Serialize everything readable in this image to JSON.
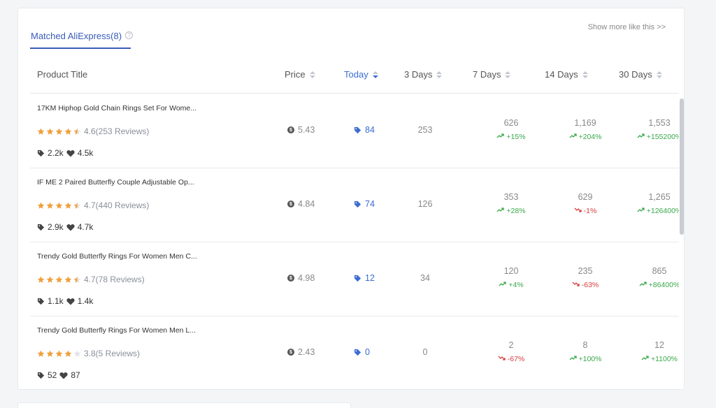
{
  "panel": {
    "tab_label": "Matched AliExpress(8)",
    "help_glyph": "?",
    "show_more": "Show more like this >>"
  },
  "columns": {
    "product_title": "Product Title",
    "price": "Price",
    "today": "Today",
    "three_days": "3 Days",
    "seven_days": "7 Days",
    "fourteen_days": "14 Days",
    "thirty_days": "30 Days"
  },
  "colors": {
    "accent": "#3a6cd3",
    "star": "#f0a03c",
    "up": "#39a84a",
    "down": "#d83c3c"
  },
  "rows": [
    {
      "title": "17KM Hiphop Gold Chain Rings Set For Wome...",
      "stars": 4.5,
      "rating_text": "4.6(253 Reviews)",
      "orders": "2.2k",
      "wishlist": "4.5k",
      "price": "5.43",
      "today": "84",
      "three_days": "253",
      "d7": "626",
      "d7_change": "+15%",
      "d7_dir": "up",
      "d14": "1,169",
      "d14_change": "+204%",
      "d14_dir": "up",
      "d30": "1,553",
      "d30_change": "+155200%",
      "d30_dir": "up"
    },
    {
      "title": "IF ME 2 Paired Butterfly Couple Adjustable Op...",
      "stars": 4.5,
      "rating_text": "4.7(440 Reviews)",
      "orders": "2.9k",
      "wishlist": "4.7k",
      "price": "4.84",
      "today": "74",
      "three_days": "126",
      "d7": "353",
      "d7_change": "+28%",
      "d7_dir": "up",
      "d14": "629",
      "d14_change": "-1%",
      "d14_dir": "down",
      "d30": "1,265",
      "d30_change": "+126400%",
      "d30_dir": "up"
    },
    {
      "title": "Trendy Gold Butterfly Rings For Women Men C...",
      "stars": 4.5,
      "rating_text": "4.7(78 Reviews)",
      "orders": "1.1k",
      "wishlist": "1.4k",
      "price": "4.98",
      "today": "12",
      "three_days": "34",
      "d7": "120",
      "d7_change": "+4%",
      "d7_dir": "up",
      "d14": "235",
      "d14_change": "-63%",
      "d14_dir": "down",
      "d30": "865",
      "d30_change": "+86400%",
      "d30_dir": "up"
    },
    {
      "title": "Trendy Gold Butterfly Rings For Women Men L...",
      "stars": 4,
      "rating_text": "3.8(5 Reviews)",
      "orders": "52",
      "wishlist": "87",
      "price": "2.43",
      "today": "0",
      "three_days": "0",
      "d7": "2",
      "d7_change": "-67%",
      "d7_dir": "down",
      "d14": "8",
      "d14_change": "+100%",
      "d14_dir": "up",
      "d30": "12",
      "d30_change": "+1100%",
      "d30_dir": "up"
    }
  ]
}
